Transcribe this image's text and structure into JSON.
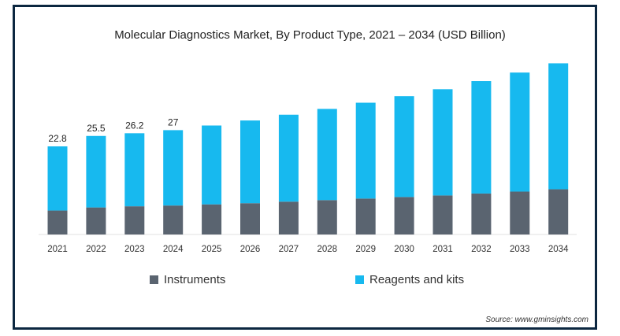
{
  "chart_data": {
    "type": "bar",
    "stacked": true,
    "title": "Molecular Diagnostics Market, By Product Type, 2021 – 2034 (USD Billion)",
    "categories": [
      "2021",
      "2022",
      "2023",
      "2024",
      "2025",
      "2026",
      "2027",
      "2028",
      "2029",
      "2030",
      "2031",
      "2032",
      "2033",
      "2034"
    ],
    "series": [
      {
        "name": "Instruments",
        "color": "#5a6470",
        "values": [
          6.2,
          7.0,
          7.3,
          7.5,
          7.8,
          8.1,
          8.5,
          8.9,
          9.3,
          9.7,
          10.1,
          10.6,
          11.1,
          11.7
        ]
      },
      {
        "name": "Reagents and kits",
        "color": "#17b9ef",
        "values": [
          16.6,
          18.5,
          18.9,
          19.5,
          20.4,
          21.4,
          22.5,
          23.6,
          24.8,
          26.1,
          27.5,
          29.1,
          30.8,
          32.6
        ]
      }
    ],
    "totals_labels": [
      "22.8",
      "25.5",
      "26.2",
      "27",
      "",
      "",
      "",
      "",
      "",
      "",
      "",
      "",
      "",
      ""
    ],
    "ylim": [
      0,
      45
    ],
    "grid": false,
    "legend_position": "bottom",
    "source": "Source: www.gminsights.com"
  }
}
